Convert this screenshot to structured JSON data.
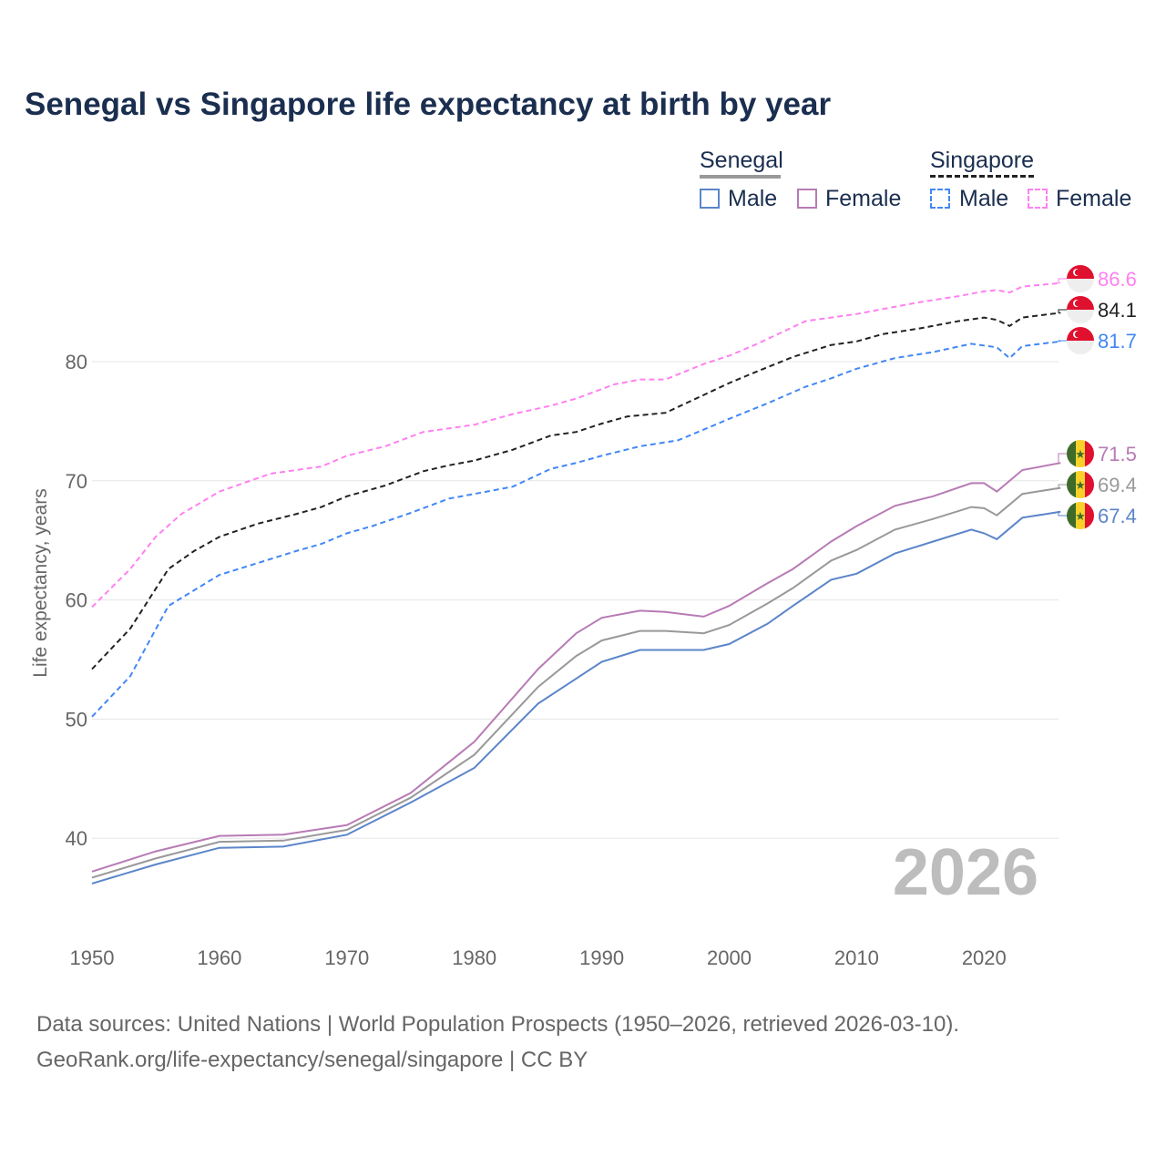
{
  "chart_data": {
    "type": "line",
    "title": "Senegal vs Singapore life expectancy at birth by year",
    "ylabel": "Life expectancy, years",
    "xlabel": "",
    "xlim": [
      1950,
      2026
    ],
    "ylim": [
      33,
      90
    ],
    "xticks": [
      "1950",
      "1960",
      "1970",
      "1980",
      "1990",
      "2000",
      "2010",
      "2020"
    ],
    "yticks": [
      "40",
      "50",
      "60",
      "70",
      "80"
    ],
    "grid": true,
    "year_watermark": "2026",
    "legend": {
      "groups": [
        {
          "name": "Senegal",
          "items": [
            "Male",
            "Female"
          ]
        },
        {
          "name": "Singapore",
          "items": [
            "Male",
            "Female"
          ]
        }
      ],
      "placement": "top-right"
    },
    "series": [
      {
        "name": "Singapore Female",
        "country": "Singapore",
        "color": "#ff80f0",
        "dashed": true,
        "end_label": "86.6",
        "x": [
          1950,
          1953,
          1955,
          1957,
          1960,
          1964,
          1968,
          1970,
          1973,
          1976,
          1980,
          1983,
          1986,
          1988,
          1991,
          1993,
          1995,
          1998,
          2000,
          2002,
          2004,
          2006,
          2008,
          2010,
          2012,
          2015,
          2018,
          2020,
          2021,
          2022,
          2023,
          2026
        ],
        "y": [
          59.4,
          62.6,
          65.3,
          67.2,
          69.1,
          70.6,
          71.2,
          72.1,
          72.9,
          74.1,
          74.7,
          75.6,
          76.3,
          76.9,
          78.1,
          78.5,
          78.5,
          79.8,
          80.5,
          81.4,
          82.4,
          83.4,
          83.7,
          84.0,
          84.4,
          85.0,
          85.5,
          85.9,
          86.0,
          85.8,
          86.3,
          86.6
        ]
      },
      {
        "name": "Singapore Total",
        "country": "Singapore",
        "color": "#222222",
        "dashed": true,
        "end_label": "84.1",
        "x": [
          1950,
          1953,
          1956,
          1958,
          1960,
          1963,
          1966,
          1968,
          1970,
          1973,
          1976,
          1978,
          1980,
          1983,
          1986,
          1988,
          1990,
          1992,
          1995,
          1998,
          2000,
          2002,
          2005,
          2008,
          2010,
          2012,
          2015,
          2018,
          2020,
          2021,
          2022,
          2023,
          2026
        ],
        "y": [
          54.2,
          57.6,
          62.6,
          64.1,
          65.3,
          66.4,
          67.2,
          67.8,
          68.7,
          69.6,
          70.8,
          71.3,
          71.7,
          72.6,
          73.8,
          74.1,
          74.8,
          75.4,
          75.7,
          77.2,
          78.2,
          79.1,
          80.4,
          81.4,
          81.7,
          82.3,
          82.8,
          83.4,
          83.7,
          83.5,
          83.0,
          83.7,
          84.1
        ]
      },
      {
        "name": "Singapore Male",
        "country": "Singapore",
        "color": "#4287f5",
        "dashed": true,
        "end_label": "81.7",
        "x": [
          1950,
          1953,
          1956,
          1958,
          1960,
          1963,
          1966,
          1968,
          1970,
          1972,
          1975,
          1978,
          1980,
          1983,
          1986,
          1988,
          1990,
          1993,
          1996,
          1998,
          2000,
          2003,
          2006,
          2008,
          2010,
          2013,
          2016,
          2019,
          2021,
          2022,
          2023,
          2026
        ],
        "y": [
          50.2,
          53.6,
          59.5,
          60.8,
          62.1,
          63.1,
          64.1,
          64.7,
          65.6,
          66.2,
          67.3,
          68.5,
          68.9,
          69.5,
          71.0,
          71.5,
          72.1,
          72.9,
          73.4,
          74.3,
          75.2,
          76.5,
          77.9,
          78.6,
          79.4,
          80.3,
          80.8,
          81.5,
          81.2,
          80.3,
          81.3,
          81.7
        ]
      },
      {
        "name": "Senegal Female",
        "country": "Senegal",
        "color": "#b77bb5",
        "dashed": false,
        "end_label": "71.5",
        "x": [
          1950,
          1955,
          1960,
          1965,
          1970,
          1975,
          1980,
          1985,
          1988,
          1990,
          1993,
          1995,
          1998,
          2000,
          2003,
          2005,
          2008,
          2010,
          2013,
          2016,
          2019,
          2020,
          2021,
          2023,
          2026
        ],
        "y": [
          37.2,
          38.9,
          40.2,
          40.3,
          41.1,
          43.8,
          48.1,
          54.2,
          57.2,
          58.5,
          59.1,
          59.0,
          58.6,
          59.5,
          61.4,
          62.6,
          64.9,
          66.2,
          67.9,
          68.7,
          69.8,
          69.8,
          69.1,
          70.9,
          71.5
        ]
      },
      {
        "name": "Senegal Total",
        "country": "Senegal",
        "color": "#999999",
        "dashed": false,
        "end_label": "69.4",
        "x": [
          1950,
          1955,
          1960,
          1965,
          1970,
          1975,
          1980,
          1985,
          1988,
          1990,
          1993,
          1995,
          1998,
          2000,
          2003,
          2005,
          2008,
          2010,
          2013,
          2016,
          2019,
          2020,
          2021,
          2023,
          2026
        ],
        "y": [
          36.7,
          38.3,
          39.7,
          39.8,
          40.7,
          43.4,
          47.0,
          52.7,
          55.3,
          56.6,
          57.4,
          57.4,
          57.2,
          57.9,
          59.7,
          61.0,
          63.3,
          64.2,
          65.9,
          66.8,
          67.8,
          67.7,
          67.1,
          68.9,
          69.4
        ]
      },
      {
        "name": "Senegal Male",
        "country": "Senegal",
        "color": "#5b85c9",
        "dashed": false,
        "end_label": "67.4",
        "x": [
          1950,
          1955,
          1960,
          1965,
          1970,
          1975,
          1980,
          1985,
          1988,
          1990,
          1993,
          1995,
          1998,
          2000,
          2003,
          2005,
          2008,
          2010,
          2013,
          2016,
          2019,
          2020,
          2021,
          2023,
          2026
        ],
        "y": [
          36.2,
          37.8,
          39.2,
          39.3,
          40.3,
          43.0,
          45.9,
          51.3,
          53.4,
          54.8,
          55.8,
          55.8,
          55.8,
          56.3,
          58.0,
          59.5,
          61.7,
          62.2,
          63.9,
          64.9,
          65.9,
          65.6,
          65.1,
          66.9,
          67.4
        ]
      }
    ]
  },
  "legend": {
    "senegal": "Senegal",
    "singapore": "Singapore",
    "male": "Male",
    "female": "Female"
  },
  "footer": {
    "line1": "Data sources: United Nations | World Population Prospects (1950–2026, retrieved 2026-03-10).",
    "line2": "GeoRank.org/life-expectancy/senegal/singapore | CC BY"
  }
}
